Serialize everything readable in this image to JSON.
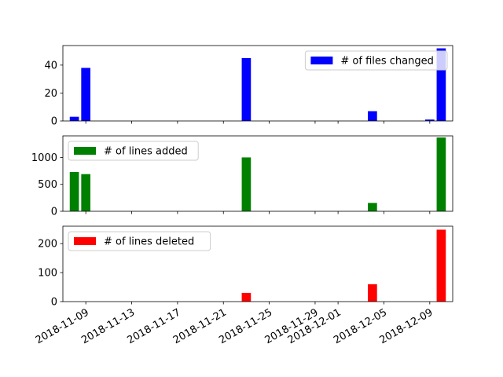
{
  "chart_data": [
    {
      "type": "bar",
      "series": [
        {
          "name": "# of files changed",
          "color": "#0000ff",
          "x": [
            "2018-11-08",
            "2018-11-09",
            "2018-11-23",
            "2018-12-04",
            "2018-12-09",
            "2018-12-10"
          ],
          "values": [
            3,
            38,
            45,
            7,
            1,
            52
          ]
        }
      ],
      "ylim": [
        0,
        54
      ],
      "yticks": [
        0,
        20,
        40
      ],
      "legend": "upper right",
      "show_xticklabels": false
    },
    {
      "type": "bar",
      "series": [
        {
          "name": "# of lines added",
          "color": "#008000",
          "x": [
            "2018-11-08",
            "2018-11-09",
            "2018-11-23",
            "2018-12-04",
            "2018-12-10"
          ],
          "values": [
            730,
            690,
            1000,
            155,
            1370
          ]
        }
      ],
      "ylim": [
        0,
        1400
      ],
      "yticks": [
        0,
        500,
        1000
      ],
      "legend": "upper left",
      "show_xticklabels": false
    },
    {
      "type": "bar",
      "series": [
        {
          "name": "# of lines deleted",
          "color": "#ff0000",
          "x": [
            "2018-11-23",
            "2018-12-04",
            "2018-12-10"
          ],
          "values": [
            30,
            60,
            248
          ]
        }
      ],
      "ylim": [
        0,
        260
      ],
      "yticks": [
        0,
        100,
        200
      ],
      "legend": "upper left",
      "show_xticklabels": true
    }
  ],
  "x_axis": {
    "type": "date",
    "range": [
      "2018-11-07",
      "2018-12-11"
    ],
    "ticks": [
      "2018-11-09",
      "2018-11-13",
      "2018-11-17",
      "2018-11-21",
      "2018-11-25",
      "2018-11-29",
      "2018-12-01",
      "2018-12-05",
      "2018-12-09"
    ]
  }
}
